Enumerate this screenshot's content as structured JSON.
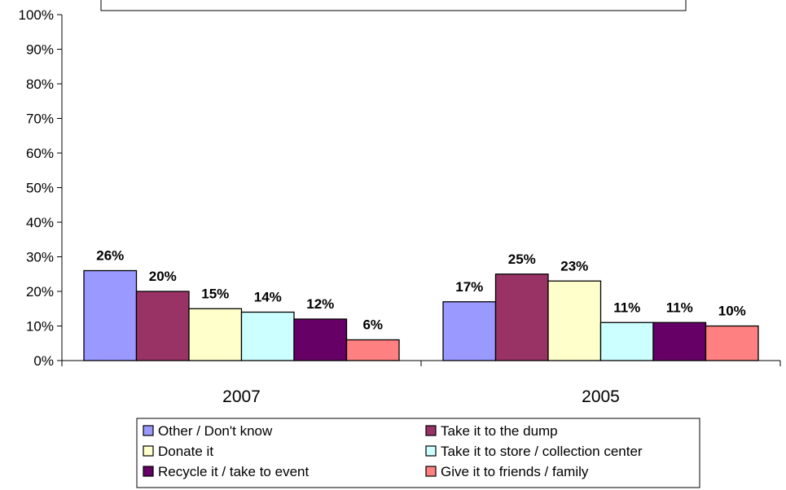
{
  "chart_data": {
    "type": "bar",
    "categories": [
      "2007",
      "2005"
    ],
    "series": [
      {
        "name": "Other / Don't know",
        "color": "#9999ff",
        "values": [
          26,
          17
        ],
        "labels": [
          "26%",
          "17%"
        ]
      },
      {
        "name": "Take it to the dump",
        "color": "#993366",
        "values": [
          20,
          25
        ],
        "labels": [
          "20%",
          "25%"
        ]
      },
      {
        "name": "Donate it",
        "color": "#ffffcc",
        "values": [
          15,
          23
        ],
        "labels": [
          "15%",
          "23%"
        ]
      },
      {
        "name": "Take it to store / collection center",
        "color": "#ccffff",
        "values": [
          14,
          11
        ],
        "labels": [
          "14%",
          "11%"
        ]
      },
      {
        "name": "Recycle it / take to event",
        "color": "#660066",
        "values": [
          12,
          11
        ],
        "labels": [
          "12%",
          "11%"
        ]
      },
      {
        "name": "Give it to friends / family",
        "color": "#ff8080",
        "values": [
          6,
          10
        ],
        "labels": [
          "6%",
          "10%"
        ]
      }
    ],
    "ylim": [
      0,
      100
    ],
    "yticks": [
      0,
      10,
      20,
      30,
      40,
      50,
      60,
      70,
      80,
      90,
      100
    ],
    "ytick_labels": [
      "0%",
      "10%",
      "20%",
      "30%",
      "40%",
      "50%",
      "60%",
      "70%",
      "80%",
      "90%",
      "100%"
    ],
    "legend_position": "bottom",
    "grid": false
  }
}
